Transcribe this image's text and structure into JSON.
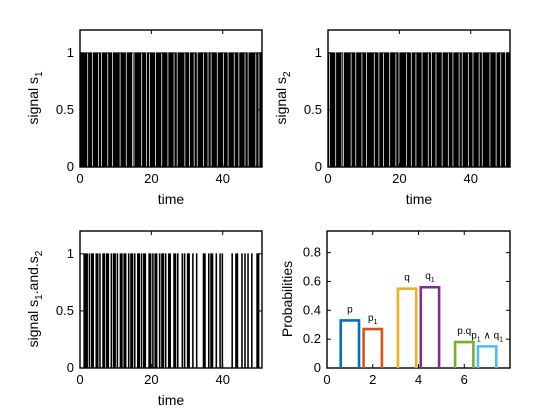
{
  "chart_data": [
    {
      "type": "line",
      "panel": "top-left",
      "series": [
        {
          "values": [
            0,
            1,
            0,
            1,
            0,
            1,
            0,
            1,
            0,
            1,
            1,
            0,
            1,
            0,
            1,
            0,
            0,
            1,
            0,
            1,
            0,
            1,
            0,
            1,
            1,
            0,
            1,
            0,
            0,
            1,
            0,
            1,
            0,
            1,
            0,
            1,
            1,
            0,
            1,
            0,
            1,
            0,
            0,
            1,
            0,
            1,
            0,
            1,
            0,
            1,
            0,
            1,
            1,
            0,
            1,
            0,
            1,
            0,
            1,
            0,
            0,
            1,
            0,
            1,
            0,
            1,
            0,
            1,
            1,
            0,
            0,
            1,
            0,
            1,
            0,
            1,
            0,
            1,
            0,
            1,
            1,
            0,
            1,
            0,
            1,
            0,
            0,
            1,
            0,
            1,
            1,
            0,
            1,
            0,
            1,
            0,
            1,
            0,
            0,
            1,
            0,
            1,
            0,
            1,
            0,
            1,
            1,
            0,
            1,
            0,
            1,
            0,
            1,
            0,
            0,
            1,
            0,
            1,
            0,
            1,
            0,
            1,
            1,
            0,
            1,
            0,
            0,
            1,
            0,
            1,
            0,
            1,
            0,
            1,
            0,
            1,
            1,
            0,
            1,
            0,
            1,
            0,
            0,
            1,
            0,
            1,
            0,
            1,
            1,
            0,
            1,
            0,
            0,
            1,
            0,
            1,
            0,
            1,
            0,
            1,
            1,
            0,
            1,
            0,
            1,
            0,
            0,
            1,
            0,
            1,
            1,
            0,
            1,
            0,
            1,
            0,
            1,
            0,
            0,
            1,
            0,
            1,
            0,
            1,
            0,
            1,
            1,
            0,
            1,
            0,
            1,
            0,
            0,
            1,
            0,
            1,
            0,
            1,
            0,
            1,
            1,
            0,
            1,
            0,
            1,
            0,
            0,
            1,
            0,
            1,
            0,
            1,
            0,
            1,
            1,
            0,
            1,
            0,
            0,
            1,
            0,
            1,
            0,
            1,
            0,
            1,
            0,
            1,
            1,
            0,
            1,
            0,
            0,
            1,
            0,
            1
          ]
        }
      ],
      "x_range": [
        0,
        51
      ],
      "ylim": [
        0,
        1.2
      ],
      "xticks": [
        0,
        20,
        40
      ],
      "yticks": [
        0,
        0.5,
        1
      ],
      "xlabel": "time",
      "ylabel": {
        "text": "signal s",
        "sub": "1"
      }
    },
    {
      "type": "line",
      "panel": "top-right",
      "series": [
        {
          "values": [
            0,
            1,
            1,
            0,
            1,
            0,
            1,
            0,
            1,
            0,
            0,
            1,
            0,
            1,
            0,
            1,
            0,
            1,
            1,
            0,
            0,
            1,
            0,
            1,
            0,
            1,
            0,
            1,
            0,
            1,
            1,
            0,
            1,
            0,
            1,
            0,
            0,
            1,
            0,
            1,
            0,
            1,
            0,
            1,
            1,
            0,
            1,
            0,
            1,
            0,
            0,
            1,
            0,
            1,
            0,
            1,
            0,
            1,
            0,
            1,
            1,
            0,
            1,
            0,
            1,
            0,
            0,
            1,
            0,
            1,
            0,
            1,
            1,
            0,
            1,
            0,
            1,
            0,
            1,
            0,
            0,
            1,
            0,
            1,
            0,
            1,
            0,
            1,
            1,
            0,
            1,
            0,
            0,
            1,
            0,
            1,
            0,
            1,
            0,
            1,
            0,
            1,
            1,
            0,
            1,
            0,
            1,
            0,
            0,
            1,
            0,
            1,
            0,
            1,
            1,
            0,
            1,
            0,
            1,
            0,
            1,
            0,
            0,
            1,
            0,
            1,
            0,
            1,
            0,
            1,
            1,
            0,
            1,
            0,
            0,
            1,
            0,
            1,
            0,
            1,
            1,
            0,
            1,
            0,
            1,
            0,
            1,
            0,
            0,
            1,
            0,
            1,
            0,
            1,
            0,
            1,
            1,
            0,
            1,
            0,
            1,
            0,
            0,
            1,
            0,
            1,
            0,
            1,
            0,
            1,
            1,
            0,
            1,
            0,
            0,
            1,
            0,
            1,
            0,
            1,
            0,
            1,
            1,
            0,
            1,
            0,
            1,
            0,
            0,
            1,
            0,
            1,
            0,
            1,
            0,
            1,
            1,
            0,
            1,
            0,
            0,
            1,
            0,
            1,
            0,
            1,
            0,
            1,
            0,
            1,
            1,
            0,
            1,
            0,
            1,
            0,
            1,
            0,
            0,
            1,
            0,
            1,
            0,
            1,
            1,
            0,
            1,
            0,
            1,
            0,
            0,
            1,
            0,
            1,
            0,
            1
          ]
        }
      ],
      "x_range": [
        0,
        51
      ],
      "ylim": [
        0,
        1.2
      ],
      "xticks": [
        0,
        20,
        40
      ],
      "yticks": [
        0,
        0.5,
        1
      ],
      "xlabel": "time",
      "ylabel": {
        "text": "signal s",
        "sub": "2"
      }
    },
    {
      "type": "line",
      "panel": "bottom-left",
      "series": [
        {
          "values": [
            0,
            0,
            0,
            0,
            0,
            1,
            0,
            1,
            0,
            1,
            0,
            0,
            1,
            0,
            0,
            1,
            0,
            1,
            0,
            0,
            0,
            1,
            0,
            1,
            0,
            0,
            1,
            0,
            0,
            0,
            1,
            0,
            1,
            0,
            0,
            1,
            0,
            1,
            0,
            0,
            0,
            1,
            0,
            0,
            1,
            0,
            1,
            0,
            0,
            1,
            0,
            0,
            0,
            1,
            0,
            1,
            0,
            0,
            1,
            0,
            1,
            0,
            0,
            0,
            1,
            0,
            0,
            1,
            0,
            1,
            0,
            0,
            1,
            0,
            0,
            0,
            1,
            0,
            1,
            0,
            0,
            1,
            0,
            0,
            1,
            0,
            1,
            0,
            0,
            0,
            0,
            1,
            0,
            1,
            0,
            0,
            1,
            0,
            0,
            1,
            0,
            1,
            0,
            0,
            0,
            1,
            0,
            0,
            1,
            0,
            1,
            0,
            0,
            1,
            0,
            0,
            0,
            1,
            0,
            1,
            0,
            0,
            0,
            0,
            1,
            0,
            1,
            0,
            0,
            1,
            0,
            0,
            0,
            0,
            0,
            1,
            0,
            0,
            1,
            0,
            0,
            0,
            1,
            0,
            1,
            0,
            0,
            0,
            0,
            1,
            0,
            0,
            0,
            0,
            1,
            0,
            0,
            0,
            0,
            0,
            0,
            0,
            0,
            1,
            0,
            1,
            0,
            0,
            0,
            0,
            1,
            0,
            0,
            1,
            0,
            1,
            0,
            0,
            0,
            0,
            1,
            0,
            0,
            0,
            0,
            1,
            0,
            0,
            1,
            0,
            0,
            0,
            0,
            0,
            0,
            0,
            0,
            0,
            0,
            0,
            0,
            1,
            0,
            0,
            0,
            0,
            1,
            0,
            1,
            0,
            0,
            0,
            0,
            0,
            1,
            0,
            0,
            0,
            1,
            0,
            0,
            0,
            1,
            0,
            0,
            0,
            0,
            1,
            0,
            0,
            0,
            0,
            0,
            0,
            1,
            0,
            1,
            0,
            0,
            0,
            0
          ]
        }
      ],
      "x_range": [
        0,
        51
      ],
      "ylim": [
        0,
        1.2
      ],
      "xticks": [
        0,
        20,
        40
      ],
      "yticks": [
        0,
        0.5,
        1
      ],
      "xlabel": "time",
      "ylabel": {
        "text": "signal s",
        "sub1": "1",
        "mid": ".and.s",
        "sub2": "2"
      }
    },
    {
      "type": "bar",
      "panel": "bottom-right",
      "categories": [
        {
          "label": "p",
          "sub": "",
          "rest": ""
        },
        {
          "label": "p",
          "sub": "1",
          "rest": ""
        },
        {
          "label": "q",
          "sub": "",
          "rest": ""
        },
        {
          "label": "q",
          "sub": "1",
          "rest": ""
        },
        {
          "label": "p.q",
          "sub": "",
          "rest": ""
        },
        {
          "label": "p",
          "sub": "1",
          "rest": " ∧ q",
          "sub2": "1"
        }
      ],
      "x": [
        1,
        2,
        3.5,
        4.5,
        6,
        7
      ],
      "values": [
        0.33,
        0.27,
        0.55,
        0.56,
        0.18,
        0.15
      ],
      "colors": [
        "#0072BD",
        "#D95319",
        "#EDB120",
        "#7E2F8E",
        "#77AC30",
        "#4DBEEE"
      ],
      "bar_width": 0.8,
      "xlim": [
        0,
        8
      ],
      "ylim": [
        0,
        0.95
      ],
      "xticks": [
        0,
        2,
        4,
        6
      ],
      "yticks": [
        0,
        0.2,
        0.4,
        0.6,
        0.8
      ],
      "ylabel": "Probabilities"
    }
  ]
}
